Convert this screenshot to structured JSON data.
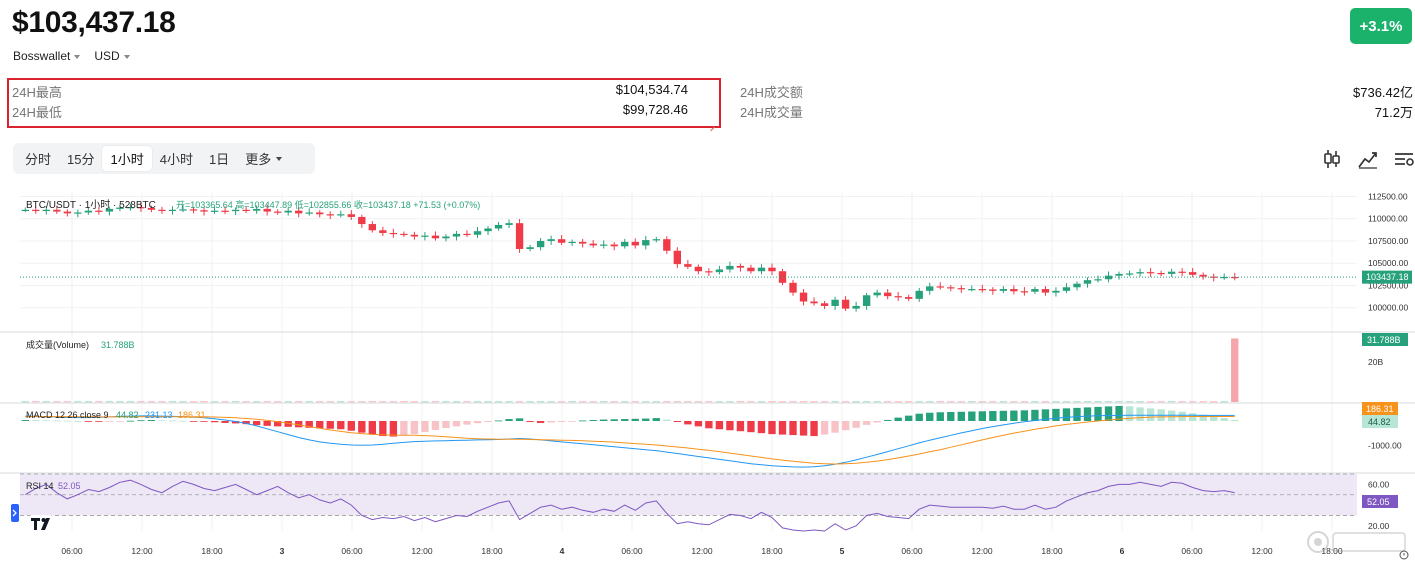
{
  "header": {
    "price": "$103,437.18",
    "wallet_selector": "Bosswallet",
    "currency_selector": "USD",
    "change_badge": "+3.1%"
  },
  "stats": {
    "high_label": "24H最高",
    "high_value": "$104,534.74",
    "low_label": "24H最低",
    "low_value": "$99,728.46",
    "turnover_label": "24H成交额",
    "turnover_value": "$736.42亿",
    "volume_label": "24H成交量",
    "volume_value": "71.2万"
  },
  "timeframes": [
    {
      "label": "分时",
      "active": false
    },
    {
      "label": "15分",
      "active": false
    },
    {
      "label": "1小时",
      "active": true
    },
    {
      "label": "4小时",
      "active": false
    },
    {
      "label": "1日",
      "active": false
    },
    {
      "label": "更多",
      "active": false
    }
  ],
  "toolbar_icons": [
    "candlestick-icon",
    "indicator-icon",
    "settings-list-icon"
  ],
  "colors": {
    "up": "#26a17b",
    "down": "#ee3b47",
    "badge": "#1bb26b",
    "highlight_border": "#d9232e",
    "macd_line": "#2196f3",
    "signal_line": "#f7931a",
    "rsi_line": "#7e57c2",
    "rsi_band": "#ede7f6"
  },
  "chart_data": {
    "type": "candlestick",
    "legend": {
      "symbol": "BTC/USDT · 1小时 · 528BTC",
      "ohlc": "开=103365.64  高=103447.89  低=102855.66  收=103437.18  +71.53 (+0.07%)",
      "volume_label": "成交量(Volume)",
      "volume_value": "31.788B",
      "macd_label": "MACD 12 26 close 9",
      "macd_hist_value": "44.82",
      "macd_value": "231.13",
      "signal_value": "186.31",
      "rsi_label": "RSI 14",
      "rsi_value": "52.05"
    },
    "price_axis": [
      "112500.00",
      "110000.00",
      "107500.00",
      "105000.00",
      "102500.00",
      "100000.00"
    ],
    "price_ylim": [
      97500,
      113000
    ],
    "last_price_tag": "103437.18",
    "volume_axis": [
      "20B"
    ],
    "volume_tag": "31.788B",
    "macd_axis": [
      "-1000.00"
    ],
    "macd_tags": [
      "186.31",
      "44.82"
    ],
    "rsi_axis": [
      "60.00",
      "40.00",
      "20.00"
    ],
    "rsi_tag": "52.05",
    "x_labels": [
      "06:00",
      "12:00",
      "18:00",
      "3",
      "06:00",
      "12:00",
      "18:00",
      "4",
      "06:00",
      "12:00",
      "18:00",
      "5",
      "06:00",
      "12:00",
      "18:00",
      "6",
      "06:00",
      "12:00",
      "18:00"
    ],
    "closes": [
      111000,
      110900,
      111000,
      110800,
      110600,
      110700,
      110900,
      110800,
      111100,
      111250,
      111300,
      111200,
      111000,
      110900,
      111000,
      111050,
      110950,
      110800,
      110900,
      110850,
      111000,
      110900,
      111100,
      110800,
      110700,
      110900,
      110600,
      110700,
      110500,
      110400,
      110500,
      110200,
      109400,
      108700,
      108400,
      108300,
      108200,
      108000,
      108100,
      107800,
      108000,
      108300,
      108200,
      108600,
      108900,
      109300,
      109500,
      106600,
      106800,
      107500,
      107700,
      107300,
      107400,
      107200,
      107000,
      107100,
      106900,
      107400,
      107000,
      107600,
      107700,
      106400,
      104900,
      104600,
      104100,
      104000,
      104300,
      104700,
      104500,
      104100,
      104500,
      104100,
      102800,
      101700,
      100700,
      100500,
      100200,
      100900,
      99900,
      100200,
      101400,
      101700,
      101300,
      101200,
      101000,
      101900,
      102400,
      102300,
      102200,
      102100,
      102100,
      102050,
      101900,
      102100,
      101850,
      101800,
      102100,
      101700,
      101900,
      102300,
      102700,
      103100,
      103200,
      103600,
      103800,
      103850,
      104000,
      103900,
      103800,
      104050,
      104000,
      103700,
      103500,
      103400,
      103450,
      103437
    ],
    "volumes": [
      0.3,
      0.3,
      0.3,
      0.3,
      0.3,
      0.3,
      0.3,
      0.3,
      0.3,
      0.3,
      0.3,
      0.3,
      0.3,
      0.3,
      0.3,
      0.3,
      0.3,
      0.3,
      0.3,
      0.3,
      0.3,
      0.3,
      0.3,
      0.3,
      0.3,
      0.3,
      0.3,
      0.3,
      0.3,
      0.3,
      0.3,
      0.3,
      0.3,
      0.3,
      0.3,
      0.3,
      0.3,
      0.3,
      0.3,
      0.3,
      0.3,
      0.3,
      0.3,
      0.3,
      0.3,
      0.3,
      0.3,
      0.3,
      0.3,
      0.3,
      0.3,
      0.3,
      0.3,
      0.3,
      0.3,
      0.3,
      0.3,
      0.3,
      0.3,
      0.3,
      0.3,
      0.3,
      0.3,
      0.3,
      0.3,
      0.3,
      0.3,
      0.3,
      0.3,
      0.3,
      0.3,
      0.3,
      0.3,
      0.3,
      0.3,
      0.3,
      0.3,
      0.3,
      0.3,
      0.3,
      0.3,
      0.3,
      0.3,
      0.3,
      0.3,
      0.3,
      0.3,
      0.3,
      0.3,
      0.3,
      0.3,
      0.3,
      0.3,
      0.3,
      0.3,
      0.3,
      0.3,
      0.3,
      0.3,
      0.3,
      0.3,
      0.3,
      0.3,
      0.3,
      0.3,
      0.3,
      0.3,
      0.3,
      0.3,
      0.3,
      0.3,
      0.3,
      0.3,
      0.3,
      0.3,
      31.788
    ],
    "volume_ylim": [
      0,
      34
    ],
    "macd_hist": [
      40,
      35,
      30,
      20,
      10,
      0,
      -20,
      -30,
      -20,
      -10,
      10,
      30,
      40,
      30,
      20,
      10,
      -10,
      -30,
      -50,
      -80,
      -100,
      -130,
      -170,
      -200,
      -220,
      -240,
      -260,
      -280,
      -300,
      -320,
      -340,
      -400,
      -480,
      -560,
      -620,
      -640,
      -600,
      -540,
      -450,
      -370,
      -290,
      -220,
      -150,
      -90,
      -40,
      20,
      80,
      110,
      -40,
      -80,
      -60,
      -40,
      -10,
      20,
      40,
      60,
      70,
      80,
      90,
      100,
      120,
      60,
      -40,
      -140,
      -220,
      -300,
      -340,
      -380,
      -420,
      -460,
      -500,
      -540,
      -560,
      -580,
      -600,
      -620,
      -560,
      -480,
      -380,
      -280,
      -160,
      -60,
      40,
      140,
      220,
      300,
      340,
      360,
      370,
      380,
      390,
      400,
      410,
      420,
      430,
      440,
      460,
      480,
      500,
      520,
      540,
      560,
      580,
      600,
      620,
      600,
      560,
      520,
      480,
      430,
      380,
      320,
      260,
      200,
      120,
      44.82
    ],
    "macd_line": [
      200,
      190,
      180,
      170,
      150,
      140,
      140,
      150,
      170,
      190,
      200,
      210,
      210,
      200,
      190,
      180,
      160,
      130,
      90,
      40,
      -20,
      -100,
      -200,
      -320,
      -440,
      -560,
      -680,
      -780,
      -860,
      -920,
      -960,
      -990,
      -1000,
      -990,
      -960,
      -920,
      -880,
      -850,
      -830,
      -820,
      -810,
      -800,
      -790,
      -780,
      -770,
      -760,
      -740,
      -720,
      -740,
      -780,
      -820,
      -860,
      -900,
      -940,
      -980,
      -1020,
      -1060,
      -1100,
      -1140,
      -1180,
      -1220,
      -1280,
      -1340,
      -1400,
      -1460,
      -1520,
      -1580,
      -1640,
      -1700,
      -1760,
      -1800,
      -1840,
      -1870,
      -1890,
      -1900,
      -1880,
      -1840,
      -1780,
      -1700,
      -1600,
      -1490,
      -1380,
      -1260,
      -1140,
      -1020,
      -900,
      -790,
      -690,
      -590,
      -490,
      -400,
      -310,
      -230,
      -160,
      -90,
      -30,
      20,
      70,
      110,
      150,
      180,
      200,
      215,
      225,
      232,
      236,
      238,
      238,
      236,
      235,
      234,
      233,
      232,
      231,
      231.5,
      231.13
    ],
    "signal_line": [
      180,
      182,
      183,
      182,
      180,
      176,
      172,
      169,
      168,
      169,
      171,
      174,
      176,
      178,
      179,
      179,
      177,
      173,
      164,
      150,
      131,
      104,
      68,
      24,
      -30,
      -92,
      -160,
      -230,
      -300,
      -370,
      -430,
      -480,
      -520,
      -550,
      -570,
      -580,
      -585,
      -590,
      -600,
      -620,
      -650,
      -680,
      -710,
      -730,
      -740,
      -750,
      -752,
      -754,
      -760,
      -770,
      -780,
      -790,
      -800,
      -815,
      -830,
      -850,
      -870,
      -900,
      -930,
      -960,
      -990,
      -1030,
      -1070,
      -1110,
      -1160,
      -1210,
      -1260,
      -1320,
      -1380,
      -1440,
      -1500,
      -1560,
      -1610,
      -1660,
      -1700,
      -1740,
      -1760,
      -1770,
      -1760,
      -1740,
      -1700,
      -1650,
      -1590,
      -1520,
      -1440,
      -1360,
      -1270,
      -1180,
      -1080,
      -980,
      -880,
      -780,
      -680,
      -590,
      -500,
      -420,
      -340,
      -270,
      -200,
      -140,
      -90,
      -40,
      0,
      40,
      80,
      110,
      140,
      160,
      170,
      178,
      182,
      184,
      185,
      186,
      186.2,
      186.31
    ],
    "macd_ylim": [
      -2100,
      700
    ],
    "rsi": [
      50,
      56,
      60,
      52,
      46,
      50,
      55,
      53,
      57,
      62,
      64,
      60,
      55,
      52,
      58,
      63,
      60,
      56,
      54,
      57,
      60,
      55,
      50,
      54,
      58,
      52,
      47,
      50,
      45,
      42,
      46,
      40,
      30,
      26,
      28,
      27,
      29,
      25,
      28,
      24,
      27,
      30,
      29,
      34,
      38,
      42,
      44,
      26,
      32,
      38,
      40,
      36,
      38,
      35,
      33,
      36,
      34,
      40,
      35,
      42,
      44,
      32,
      22,
      24,
      22,
      21,
      26,
      31,
      30,
      27,
      33,
      28,
      18,
      16,
      15,
      16,
      15,
      22,
      16,
      20,
      30,
      32,
      29,
      28,
      27,
      36,
      40,
      39,
      38,
      38,
      38,
      38,
      37,
      39,
      36,
      36,
      40,
      36,
      38,
      44,
      48,
      52,
      54,
      58,
      60,
      60,
      62,
      60,
      58,
      62,
      61,
      57,
      54,
      53,
      54,
      52.05
    ],
    "rsi_ylim": [
      15,
      70
    ],
    "rsi_band": [
      30,
      70
    ]
  }
}
